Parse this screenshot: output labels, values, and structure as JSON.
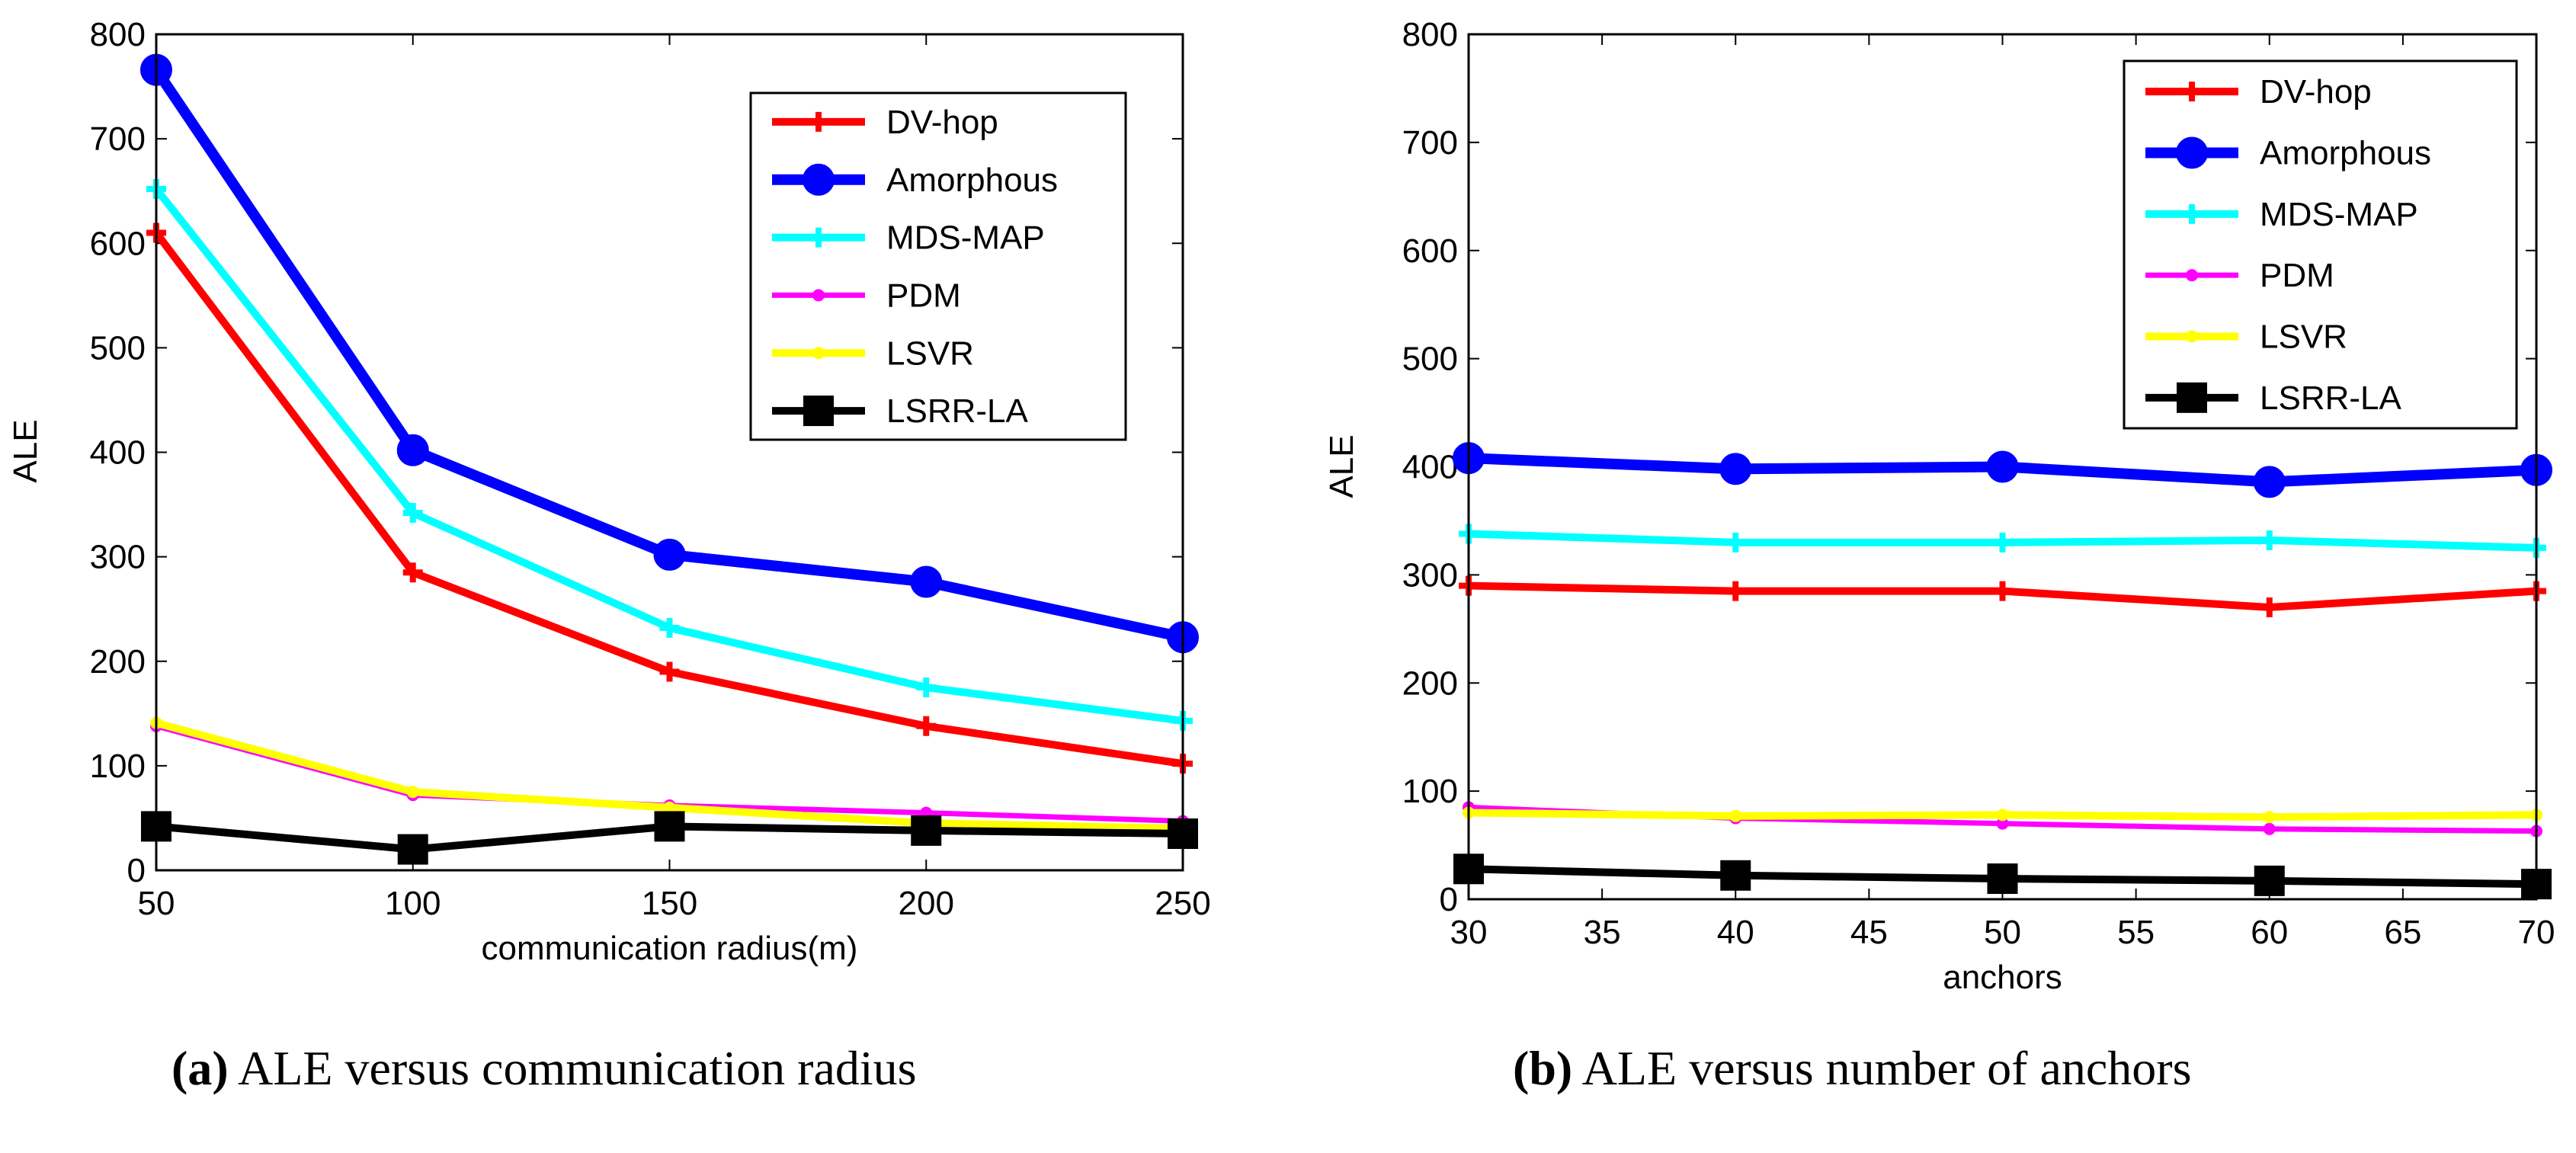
{
  "chart_data": [
    {
      "id": "a",
      "type": "line",
      "title": "",
      "caption_label": "(a)",
      "caption_text": "ALE versus communication radius",
      "xlabel": "communication radius(m)",
      "ylabel": "ALE",
      "xlim": [
        50,
        250
      ],
      "ylim": [
        0,
        800
      ],
      "xticks": [
        50,
        100,
        150,
        200,
        250
      ],
      "yticks": [
        0,
        100,
        200,
        300,
        400,
        500,
        600,
        700,
        800
      ],
      "legend_position": "top-right",
      "x": [
        50,
        100,
        150,
        200,
        250
      ],
      "series": [
        {
          "name": "DV-hop",
          "color": "#ff0000",
          "marker": "plus",
          "values": [
            610,
            285,
            190,
            138,
            102
          ]
        },
        {
          "name": "Amorphous",
          "color": "#0000ff",
          "marker": "circle",
          "values": [
            766,
            402,
            302,
            276,
            223
          ]
        },
        {
          "name": "MDS-MAP",
          "color": "#00ffff",
          "marker": "plus",
          "values": [
            652,
            342,
            232,
            175,
            143
          ]
        },
        {
          "name": "PDM",
          "color": "#ff00ff",
          "marker": "dot",
          "values": [
            138,
            72,
            62,
            55,
            47
          ]
        },
        {
          "name": "LSVR",
          "color": "#ffff00",
          "marker": "dot",
          "values": [
            141,
            75,
            60,
            45,
            40
          ]
        },
        {
          "name": "LSRR-LA",
          "color": "#000000",
          "marker": "square",
          "values": [
            42,
            20,
            42,
            38,
            35
          ]
        }
      ]
    },
    {
      "id": "b",
      "type": "line",
      "title": "",
      "caption_label": "(b)",
      "caption_text": "ALE versus number of anchors",
      "xlabel": "anchors",
      "ylabel": "ALE",
      "xlim": [
        30,
        70
      ],
      "ylim": [
        0,
        800
      ],
      "xticks": [
        30,
        35,
        40,
        45,
        50,
        55,
        60,
        65,
        70
      ],
      "yticks": [
        0,
        100,
        200,
        300,
        400,
        500,
        600,
        700,
        800
      ],
      "legend_position": "top-right",
      "x": [
        30,
        40,
        50,
        60,
        70
      ],
      "series": [
        {
          "name": "DV-hop",
          "color": "#ff0000",
          "marker": "plus",
          "values": [
            290,
            285,
            285,
            270,
            285
          ]
        },
        {
          "name": "Amorphous",
          "color": "#0000ff",
          "marker": "circle",
          "values": [
            408,
            398,
            400,
            386,
            397
          ]
        },
        {
          "name": "MDS-MAP",
          "color": "#00ffff",
          "marker": "plus",
          "values": [
            338,
            330,
            330,
            332,
            325
          ]
        },
        {
          "name": "PDM",
          "color": "#ff00ff",
          "marker": "dot",
          "values": [
            85,
            75,
            70,
            65,
            63
          ]
        },
        {
          "name": "LSVR",
          "color": "#ffff00",
          "marker": "dot",
          "values": [
            80,
            77,
            78,
            76,
            78
          ]
        },
        {
          "name": "LSRR-LA",
          "color": "#000000",
          "marker": "square",
          "values": [
            28,
            22,
            19,
            17,
            14
          ]
        }
      ]
    }
  ]
}
